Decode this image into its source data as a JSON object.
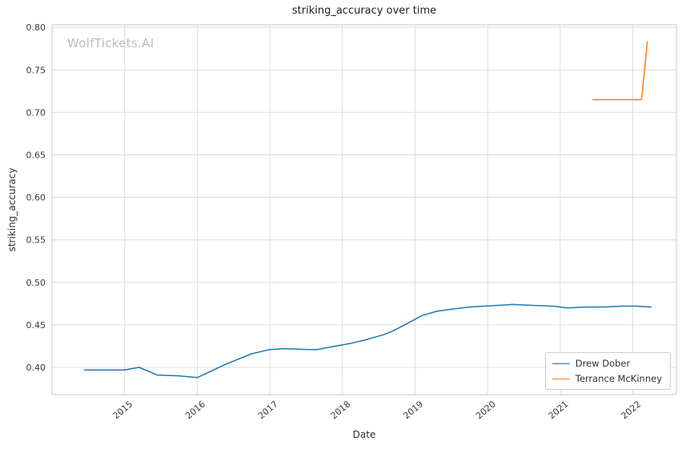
{
  "watermark": "WolfTickets.AI",
  "chart_data": {
    "type": "line",
    "title": "striking_accuracy over time",
    "xlabel": "Date",
    "ylabel": "striking_accuracy",
    "grid": true,
    "legend_position": "lower right",
    "xlim": [
      2014.0,
      2022.6
    ],
    "ylim": [
      0.368,
      0.803
    ],
    "x_ticks": [
      2015,
      2016,
      2017,
      2018,
      2019,
      2020,
      2021,
      2022
    ],
    "y_ticks": [
      0.4,
      0.45,
      0.5,
      0.55,
      0.6,
      0.65,
      0.7,
      0.75,
      0.8
    ],
    "series": [
      {
        "name": "Drew Dober",
        "color": "#1f77b4",
        "x": [
          2014.45,
          2015.0,
          2015.2,
          2015.45,
          2015.75,
          2016.0,
          2016.4,
          2016.75,
          2017.0,
          2017.2,
          2017.5,
          2017.65,
          2017.9,
          2018.1,
          2018.3,
          2018.55,
          2018.7,
          2018.9,
          2019.1,
          2019.3,
          2019.55,
          2019.75,
          2019.95,
          2020.15,
          2020.35,
          2020.6,
          2020.9,
          2021.1,
          2021.35,
          2021.6,
          2021.85,
          2022.05,
          2022.25
        ],
        "y": [
          0.397,
          0.397,
          0.4,
          0.391,
          0.39,
          0.388,
          0.404,
          0.416,
          0.421,
          0.422,
          0.421,
          0.421,
          0.425,
          0.428,
          0.432,
          0.438,
          0.443,
          0.452,
          0.461,
          0.466,
          0.469,
          0.471,
          0.472,
          0.473,
          0.474,
          0.473,
          0.472,
          0.47,
          0.471,
          0.471,
          0.472,
          0.472,
          0.471
        ]
      },
      {
        "name": "Terrance McKinney",
        "color": "#ff7f0e",
        "x": [
          2021.45,
          2022.12,
          2022.2
        ],
        "y": [
          0.715,
          0.715,
          0.783
        ]
      }
    ]
  }
}
